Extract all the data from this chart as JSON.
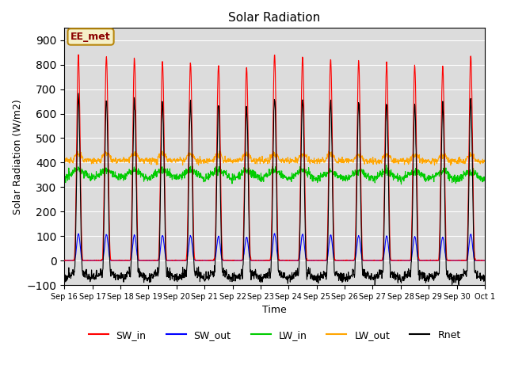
{
  "title": "Solar Radiation",
  "xlabel": "Time",
  "ylabel": "Solar Radiation (W/m2)",
  "ylim": [
    -100,
    950
  ],
  "yticks": [
    -100,
    0,
    100,
    200,
    300,
    400,
    500,
    600,
    700,
    800,
    900
  ],
  "bg_color": "#dcdcdc",
  "annotation_text": "EE_met",
  "annotation_bg": "#f5f0c8",
  "annotation_border": "#b8860b",
  "colors": {
    "SW_in": "#ff0000",
    "SW_out": "#0000ff",
    "LW_in": "#00cc00",
    "LW_out": "#ffa500",
    "Rnet": "#000000"
  },
  "n_days": 15,
  "hours_per_day": 24,
  "dt_hours": 0.25,
  "SW_in_peak": 840,
  "LW_in_base": 355,
  "LW_out_base": 405,
  "tick_labels": [
    "Sep 16",
    "Sep 17",
    "Sep 18",
    "Sep 19",
    "Sep 20",
    "Sep 21",
    "Sep 22",
    "Sep 23",
    "Sep 24",
    "Sep 25",
    "Sep 26",
    "Sep 27",
    "Sep 28",
    "Sep 29",
    "Sep 30",
    "Oct 1"
  ]
}
